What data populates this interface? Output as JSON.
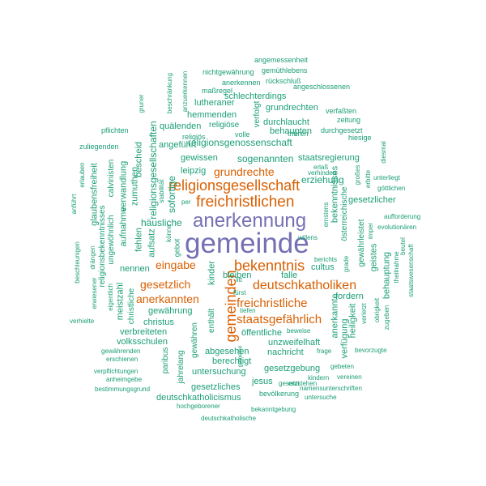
{
  "words": [
    {
      "text": "gemeinde",
      "color": "#7570b3"
    },
    {
      "text": "anerkennung",
      "color": "#7570b3"
    },
    {
      "text": "gemeinden",
      "color": "#d95f02"
    },
    {
      "text": "freichristlichen",
      "color": "#d95f02"
    },
    {
      "text": "religionsgesellschaft",
      "color": "#d95f02"
    },
    {
      "text": "bekenntnis",
      "color": "#d95f02"
    },
    {
      "text": "deutschkatholiken",
      "color": "#d95f02"
    },
    {
      "text": "freichristliche",
      "color": "#d95f02"
    },
    {
      "text": "staatsgefährlich",
      "color": "#d95f02"
    },
    {
      "text": "grundrechte",
      "color": "#d95f02"
    },
    {
      "text": "anerkannten",
      "color": "#d95f02"
    },
    {
      "text": "gesetzlich",
      "color": "#d95f02"
    },
    {
      "text": "eingabe",
      "color": "#d95f02"
    },
    {
      "text": "religionsgenossenschaft",
      "color": "#1b9e77"
    },
    {
      "text": "sogenannten",
      "color": "#1b9e77"
    },
    {
      "text": "religionsgesellschaften",
      "color": "#1b9e77"
    },
    {
      "text": "häusliche",
      "color": "#1b9e77"
    },
    {
      "text": "erziehung",
      "color": "#1b9e77"
    },
    {
      "text": "sofortige",
      "color": "#1b9e77"
    },
    {
      "text": "staatsregierung",
      "color": "#1b9e77"
    },
    {
      "text": "gewissen",
      "color": "#1b9e77"
    },
    {
      "text": "leipzig",
      "color": "#1b9e77"
    },
    {
      "text": "angeführt",
      "color": "#1b9e77"
    },
    {
      "text": "durchlaucht",
      "color": "#1b9e77"
    },
    {
      "text": "schlechterdings",
      "color": "#1b9e77"
    },
    {
      "text": "grundrechten",
      "color": "#1b9e77"
    },
    {
      "text": "behaupten",
      "color": "#1b9e77"
    },
    {
      "text": "quälenden",
      "color": "#1b9e77"
    },
    {
      "text": "hemmenden",
      "color": "#1b9e77"
    },
    {
      "text": "lutheraner",
      "color": "#1b9e77"
    },
    {
      "text": "religiöse",
      "color": "#1b9e77"
    },
    {
      "text": "aufsatz",
      "color": "#1b9e77"
    },
    {
      "text": "nennen",
      "color": "#1b9e77"
    },
    {
      "text": "christus",
      "color": "#1b9e77"
    },
    {
      "text": "gewährung",
      "color": "#1b9e77"
    },
    {
      "text": "verbreiteten",
      "color": "#1b9e77"
    },
    {
      "text": "volksschulen",
      "color": "#1b9e77"
    },
    {
      "text": "öffentliche",
      "color": "#1b9e77"
    },
    {
      "text": "unzweifelhaft",
      "color": "#1b9e77"
    },
    {
      "text": "abgesehen",
      "color": "#1b9e77"
    },
    {
      "text": "nachricht",
      "color": "#1b9e77"
    },
    {
      "text": "berechtigt",
      "color": "#1b9e77"
    },
    {
      "text": "untersuchung",
      "color": "#1b9e77"
    },
    {
      "text": "gesetzgebung",
      "color": "#1b9e77"
    },
    {
      "text": "jesus",
      "color": "#1b9e77"
    },
    {
      "text": "gesetzliches",
      "color": "#1b9e77"
    },
    {
      "text": "deutschkatholicismus",
      "color": "#1b9e77"
    },
    {
      "text": "bevölkerung",
      "color": "#1b9e77"
    },
    {
      "text": "bleiben",
      "color": "#1b9e77"
    },
    {
      "text": "falle",
      "color": "#1b9e77"
    },
    {
      "text": "cultus",
      "color": "#1b9e77"
    },
    {
      "text": "fordern",
      "color": "#1b9e77"
    },
    {
      "text": "gesetzlicher",
      "color": "#1b9e77"
    },
    {
      "text": "bekenntnisses",
      "color": "#1b9e77"
    },
    {
      "text": "anerkannte",
      "color": "#1b9e77"
    },
    {
      "text": "heiligkeit",
      "color": "#1b9e77"
    },
    {
      "text": "verfügung",
      "color": "#1b9e77"
    },
    {
      "text": "behauptung",
      "color": "#1b9e77"
    },
    {
      "text": "geistes",
      "color": "#1b9e77"
    },
    {
      "text": "gewährleistet",
      "color": "#1b9e77"
    },
    {
      "text": "österreichische",
      "color": "#1b9e77"
    },
    {
      "text": "meistzahl",
      "color": "#1b9e77"
    },
    {
      "text": "christliche",
      "color": "#1b9e77"
    },
    {
      "text": "aufnahme",
      "color": "#1b9e77"
    },
    {
      "text": "verwandlung",
      "color": "#1b9e77"
    },
    {
      "text": "zumuthen",
      "color": "#1b9e77"
    },
    {
      "text": "bescheid",
      "color": "#1b9e77"
    },
    {
      "text": "fehlen",
      "color": "#1b9e77"
    },
    {
      "text": "calvinisten",
      "color": "#1b9e77"
    },
    {
      "text": "ungewöhnlich",
      "color": "#1b9e77"
    },
    {
      "text": "glaubensfreiheit",
      "color": "#1b9e77"
    },
    {
      "text": "religionsbekenntnisses",
      "color": "#1b9e77"
    },
    {
      "text": "kinder",
      "color": "#1b9e77"
    },
    {
      "text": "enthält",
      "color": "#1b9e77"
    },
    {
      "text": "gewähren",
      "color": "#1b9e77"
    },
    {
      "text": "jahrelang",
      "color": "#1b9e77"
    },
    {
      "text": "paribus",
      "color": "#1b9e77"
    },
    {
      "text": "verfolgt",
      "color": "#1b9e77"
    },
    {
      "text": "gebot",
      "color": "#1b9e77"
    },
    {
      "text": "angemessenheit",
      "color": "#1b9e77"
    },
    {
      "text": "gemüthlebens",
      "color": "#1b9e77"
    },
    {
      "text": "nichtgewährung",
      "color": "#1b9e77"
    },
    {
      "text": "anerkennen",
      "color": "#1b9e77"
    },
    {
      "text": "rückschluß",
      "color": "#1b9e77"
    },
    {
      "text": "angeschlossenen",
      "color": "#1b9e77"
    },
    {
      "text": "maßregel",
      "color": "#1b9e77"
    },
    {
      "text": "verfaßten",
      "color": "#1b9e77"
    },
    {
      "text": "zeitung",
      "color": "#1b9e77"
    },
    {
      "text": "durchgesetzt",
      "color": "#1b9e77"
    },
    {
      "text": "thüren",
      "color": "#1b9e77"
    },
    {
      "text": "volle",
      "color": "#1b9e77"
    },
    {
      "text": "hiesige",
      "color": "#1b9e77"
    },
    {
      "text": "religiös",
      "color": "#1b9e77"
    },
    {
      "text": "pflichten",
      "color": "#1b9e77"
    },
    {
      "text": "zuliegenden",
      "color": "#1b9e77"
    },
    {
      "text": "erlauben",
      "color": "#1b9e77"
    },
    {
      "text": "anführt",
      "color": "#1b9e77"
    },
    {
      "text": "beschränkung",
      "color": "#1b9e77"
    },
    {
      "text": "anzuerkennen",
      "color": "#1b9e77"
    },
    {
      "text": "gruner",
      "color": "#1b9e77"
    },
    {
      "text": "erlaß",
      "color": "#1b9e77"
    },
    {
      "text": "verhindert",
      "color": "#1b9e77"
    },
    {
      "text": "großes",
      "color": "#1b9e77"
    },
    {
      "text": "erbitte",
      "color": "#1b9e77"
    },
    {
      "text": "unterliegt",
      "color": "#1b9e77"
    },
    {
      "text": "göttlichen",
      "color": "#1b9e77"
    },
    {
      "text": "diesmal",
      "color": "#1b9e77"
    },
    {
      "text": "aufforderung",
      "color": "#1b9e77"
    },
    {
      "text": "evolutionären",
      "color": "#1b9e77"
    },
    {
      "text": "imper",
      "color": "#1b9e77"
    },
    {
      "text": "staatswesenschaft",
      "color": "#1b9e77"
    },
    {
      "text": "theilnahme",
      "color": "#1b9e77"
    },
    {
      "text": "beutel",
      "color": "#1b9e77"
    },
    {
      "text": "willens",
      "color": "#1b9e77"
    },
    {
      "text": "berichts",
      "color": "#1b9e77"
    },
    {
      "text": "ernstens",
      "color": "#1b9e77"
    },
    {
      "text": "grade",
      "color": "#1b9e77"
    },
    {
      "text": "stabilität",
      "color": "#1b9e77"
    },
    {
      "text": "könne",
      "color": "#1b9e77"
    },
    {
      "text": "per",
      "color": "#1b9e77"
    },
    {
      "text": "beschleunigen",
      "color": "#1b9e77"
    },
    {
      "text": "drängen",
      "color": "#1b9e77"
    },
    {
      "text": "erwiesener",
      "color": "#1b9e77"
    },
    {
      "text": "eigentlich",
      "color": "#1b9e77"
    },
    {
      "text": "verhielte",
      "color": "#1b9e77"
    },
    {
      "text": "litt",
      "color": "#1b9e77"
    },
    {
      "text": "fürst",
      "color": "#1b9e77"
    },
    {
      "text": "tiefen",
      "color": "#1b9e77"
    },
    {
      "text": "beweise",
      "color": "#1b9e77"
    },
    {
      "text": "verletzt",
      "color": "#1b9e77"
    },
    {
      "text": "obrigkeit",
      "color": "#1b9e77"
    },
    {
      "text": "zugeben",
      "color": "#1b9e77"
    },
    {
      "text": "bevorzugte",
      "color": "#1b9e77"
    },
    {
      "text": "frage",
      "color": "#1b9e77"
    },
    {
      "text": "gewährenden",
      "color": "#1b9e77"
    },
    {
      "text": "erschienen",
      "color": "#1b9e77"
    },
    {
      "text": "verpflichtungen",
      "color": "#1b9e77"
    },
    {
      "text": "anheimgebe",
      "color": "#1b9e77"
    },
    {
      "text": "bestimmungsgrund",
      "color": "#1b9e77"
    },
    {
      "text": "gemeine",
      "color": "#1b9e77"
    },
    {
      "text": "gebeten",
      "color": "#1b9e77"
    },
    {
      "text": "kindern",
      "color": "#1b9e77"
    },
    {
      "text": "vereinen",
      "color": "#1b9e77"
    },
    {
      "text": "entstehen",
      "color": "#1b9e77"
    },
    {
      "text": "gesetzt",
      "color": "#1b9e77"
    },
    {
      "text": "namensunterschriften",
      "color": "#1b9e77"
    },
    {
      "text": "untersuche",
      "color": "#1b9e77"
    },
    {
      "text": "hochgeborener",
      "color": "#1b9e77"
    },
    {
      "text": "bekanntgebung",
      "color": "#1b9e77"
    },
    {
      "text": "deutschkatholische",
      "color": "#1b9e77"
    }
  ]
}
